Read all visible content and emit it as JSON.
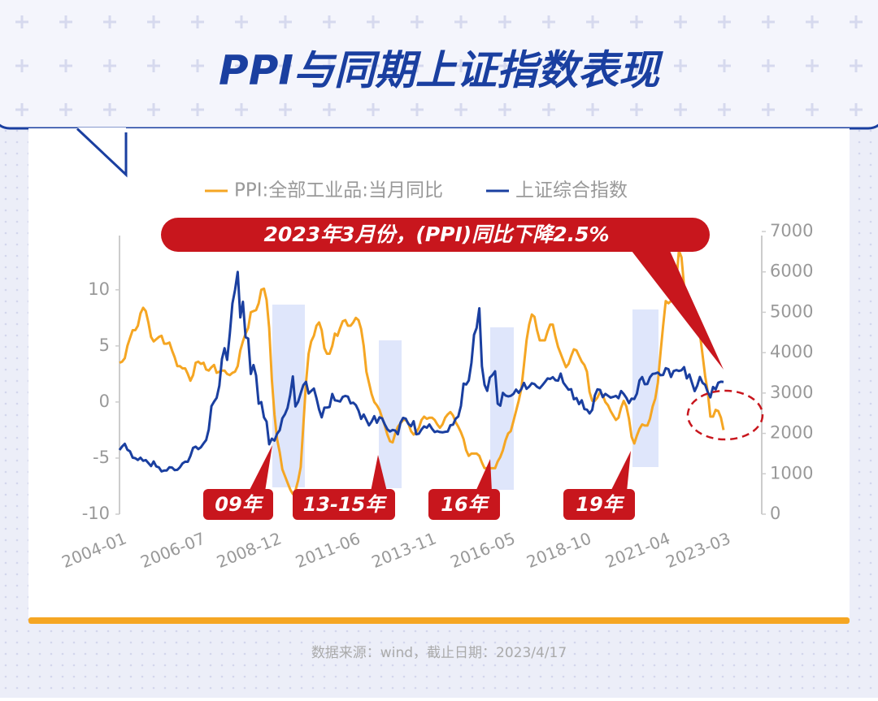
{
  "title": "PPI与同期上证指数表现",
  "chart_data": {
    "type": "line",
    "categories": [
      "2004-01",
      null,
      null,
      null,
      null,
      null,
      null,
      null,
      null,
      null,
      null,
      null,
      null,
      null,
      null,
      null,
      null,
      null,
      null,
      null,
      null,
      null,
      null,
      null,
      null,
      null,
      null,
      null,
      null,
      null,
      "2006-07",
      null,
      null,
      null,
      null,
      null,
      null,
      null,
      null,
      null,
      null,
      null,
      null,
      null,
      null,
      null,
      null,
      null,
      null,
      null,
      null,
      null,
      null,
      null,
      null,
      null,
      null,
      null,
      null,
      "2008-12",
      null,
      null,
      null,
      null,
      null,
      null,
      null,
      null,
      null,
      null,
      null,
      null,
      null,
      null,
      null,
      null,
      null,
      null,
      null,
      null,
      null,
      null,
      null,
      null,
      null,
      null,
      null,
      null,
      null,
      "2011-06",
      null,
      null,
      null,
      null,
      null,
      null,
      null,
      null,
      null,
      null,
      null,
      null,
      null,
      null,
      null,
      null,
      null,
      null,
      null,
      null,
      null,
      null,
      null,
      null,
      null,
      null,
      null,
      null,
      "2013-11",
      null,
      null,
      null,
      null,
      null,
      null,
      null,
      null,
      null,
      null,
      null,
      null,
      null,
      null,
      null,
      null,
      null,
      null,
      null,
      null,
      null,
      null,
      null,
      null,
      null,
      null,
      null,
      null,
      null,
      "2016-05",
      null,
      null,
      null,
      null,
      null,
      null,
      null,
      null,
      null,
      null,
      null,
      null,
      null,
      null,
      null,
      null,
      null,
      null,
      null,
      null,
      null,
      null,
      null,
      null,
      null,
      null,
      null,
      null,
      "2018-10",
      null,
      null,
      null,
      null,
      null,
      null,
      null,
      null,
      null,
      null,
      null,
      null,
      null,
      null,
      null,
      null,
      null,
      null,
      null,
      null,
      null,
      null,
      null,
      null,
      null,
      null,
      null,
      null,
      null,
      "2021-04",
      null,
      null,
      null,
      null,
      null,
      null,
      null,
      null,
      null,
      null,
      null,
      null,
      null,
      null,
      null,
      null,
      null,
      null,
      null,
      null,
      null,
      null,
      "2023-03"
    ],
    "series": [
      {
        "name": "PPI:全部工业品:当月同比",
        "color": "#f5a623",
        "values": [
          3.5,
          3.6,
          3.9,
          5.0,
          5.7,
          6.4,
          6.4,
          6.8,
          7.9,
          8.4,
          8.1,
          7.1,
          5.8,
          5.4,
          5.6,
          5.8,
          5.9,
          5.2,
          5.2,
          5.3,
          4.6,
          4.0,
          3.2,
          3.2,
          3.0,
          3.0,
          2.5,
          1.9,
          2.4,
          3.5,
          3.6,
          3.4,
          3.5,
          2.9,
          2.8,
          3.1,
          3.3,
          2.6,
          2.7,
          2.8,
          2.8,
          2.5,
          2.4,
          2.6,
          2.7,
          3.2,
          4.6,
          5.4,
          6.1,
          6.6,
          8.0,
          8.1,
          8.2,
          8.8,
          10.0,
          10.1,
          9.1,
          6.6,
          2.0,
          -1.1,
          -3.3,
          -4.5,
          -6.0,
          -6.6,
          -7.2,
          -7.8,
          -8.2,
          -7.9,
          -7.0,
          -5.8,
          -2.1,
          1.7,
          4.3,
          5.4,
          5.9,
          6.8,
          7.1,
          6.4,
          4.8,
          4.3,
          4.3,
          5.0,
          6.1,
          5.9,
          6.6,
          7.2,
          7.3,
          6.8,
          6.8,
          7.1,
          7.5,
          7.3,
          6.5,
          5.0,
          2.7,
          1.7,
          0.7,
          0.0,
          -0.3,
          -0.7,
          -1.4,
          -2.1,
          -2.9,
          -3.5,
          -3.6,
          -2.8,
          -2.2,
          -1.9,
          -1.6,
          -1.6,
          -1.9,
          -2.6,
          -2.9,
          -2.7,
          -2.3,
          -1.6,
          -1.3,
          -1.5,
          -1.4,
          -1.4,
          -1.6,
          -2.0,
          -2.3,
          -2.0,
          -1.4,
          -1.1,
          -0.9,
          -1.2,
          -1.8,
          -2.2,
          -2.7,
          -3.3,
          -4.3,
          -4.8,
          -4.6,
          -4.6,
          -4.6,
          -4.8,
          -5.4,
          -5.9,
          -5.9,
          -5.9,
          -5.9,
          -5.9,
          -5.3,
          -4.9,
          -4.3,
          -3.4,
          -2.8,
          -2.6,
          -1.7,
          -0.8,
          0.1,
          1.2,
          3.3,
          5.5,
          6.9,
          7.8,
          7.6,
          6.4,
          5.5,
          5.5,
          5.5,
          6.3,
          6.9,
          6.9,
          5.8,
          4.9,
          4.3,
          3.7,
          3.1,
          3.4,
          4.1,
          4.7,
          4.6,
          4.1,
          3.6,
          3.3,
          2.7,
          0.9,
          0.1,
          0.1,
          0.4,
          0.9,
          0.6,
          0.0,
          -0.3,
          -0.8,
          -1.2,
          -1.6,
          -1.4,
          -0.5,
          0.1,
          -0.4,
          -1.5,
          -3.1,
          -3.7,
          -3.0,
          -2.4,
          -2.0,
          -2.1,
          -2.1,
          -1.5,
          -0.4,
          0.3,
          1.7,
          4.4,
          6.8,
          9.0,
          8.8,
          9.0,
          9.5,
          10.7,
          13.5,
          12.9,
          10.3,
          9.1,
          8.8,
          8.3,
          8.0,
          6.4,
          6.1,
          4.2,
          2.3,
          0.9,
          -1.3,
          -1.3,
          -0.7,
          -0.8,
          -1.4,
          -2.5
        ]
      },
      {
        "name": "上证综合指数",
        "color": "#1a3fa0",
        "axis": "y2",
        "values": [
          1590,
          1675,
          1742,
          1595,
          1555,
          1400,
          1386,
          1342,
          1397,
          1321,
          1340,
          1267,
          1191,
          1306,
          1182,
          1159,
          1060,
          1080,
          1083,
          1162,
          1155,
          1092,
          1099,
          1161,
          1258,
          1299,
          1298,
          1440,
          1642,
          1672,
          1612,
          1658,
          1752,
          1837,
          2099,
          2675,
          2786,
          2881,
          3183,
          3841,
          4109,
          3820,
          4471,
          5218,
          5552,
          6000,
          4871,
          5261,
          4383,
          4348,
          3472,
          3693,
          3433,
          2736,
          2775,
          2397,
          2293,
          1729,
          1871,
          1821,
          1990,
          2082,
          2373,
          2477,
          2632,
          2959,
          3412,
          2667,
          2779,
          2996,
          3195,
          3277,
          2989,
          3051,
          3110,
          2870,
          2592,
          2398,
          2638,
          2639,
          2656,
          2978,
          2820,
          2808,
          2790,
          2905,
          2928,
          2911,
          2743,
          2762,
          2701,
          2567,
          2359,
          2468,
          2333,
          2199,
          2293,
          2428,
          2263,
          2397,
          2373,
          2225,
          2103,
          2047,
          2086,
          2069,
          1980,
          2269,
          2385,
          2366,
          2237,
          2178,
          2301,
          1979,
          1994,
          2098,
          2175,
          2141,
          2220,
          2116,
          2033,
          2056,
          2033,
          2026,
          2039,
          2048,
          2201,
          2217,
          2364,
          2420,
          2683,
          3235,
          3210,
          3310,
          3748,
          4441,
          4612,
          5100,
          3664,
          3206,
          3053,
          3383,
          3445,
          3539,
          2738,
          2688,
          3004,
          2938,
          2917,
          2930,
          2979,
          3085,
          3005,
          3100,
          3250,
          3104,
          3159,
          3242,
          3223,
          3155,
          3117,
          3192,
          3273,
          3361,
          3349,
          3393,
          3317,
          3307,
          3481,
          3259,
          3169,
          3082,
          3095,
          2847,
          2876,
          2725,
          2821,
          2603,
          2588,
          2494,
          2585,
          2941,
          3091,
          3078,
          2899,
          2979,
          2933,
          2886,
          2905,
          2929,
          2872,
          3050,
          2977,
          2880,
          2750,
          2860,
          2852,
          2985,
          3310,
          3396,
          3218,
          3225,
          3392,
          3473,
          3483,
          3509,
          3441,
          3447,
          3615,
          3591,
          3397,
          3544,
          3568,
          3547,
          3564,
          3640,
          3361,
          3462,
          3252,
          3047,
          3186,
          3399,
          3253,
          3202,
          3024,
          2893,
          3151,
          3089,
          3255,
          3280,
          3273
        ]
      }
    ],
    "ylim": [
      -10,
      15.2
    ],
    "yticks": [
      -10,
      -5,
      0,
      5,
      10
    ],
    "y2lim": [
      0,
      7000
    ],
    "y2ticks": [
      0,
      1000,
      2000,
      3000,
      4000,
      5000,
      6000,
      7000
    ],
    "annotations": [
      "2023年3月份，(PPI)同比下降2.5%",
      "09年",
      "13-15年",
      "16年",
      "19年"
    ]
  },
  "footer": "数据来源：wind，截止日期：2023/4/17"
}
